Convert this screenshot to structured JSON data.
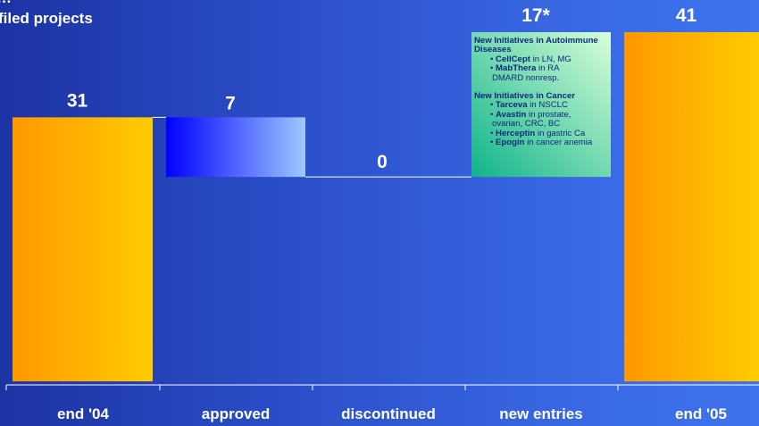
{
  "title": "filed projects",
  "title_fragment": "…",
  "chart_data": {
    "type": "bar",
    "subtype": "waterfall",
    "categories": [
      "end '04",
      "approved",
      "discontinued",
      "new entries",
      "end '05"
    ],
    "values": [
      31,
      7,
      0,
      17,
      41
    ],
    "value_labels": [
      "31",
      "7",
      "0",
      "17*",
      "41"
    ],
    "ylim": [
      0,
      44
    ],
    "grid": false,
    "colors": {
      "totals": "#ff9800",
      "totals_end": "#ffcc00",
      "approved_start": "#0000ff",
      "approved_end": "#9ec8ff",
      "new_entries_start": "#0fb38a",
      "new_entries_end": "#d9ffd9",
      "connector": "#ffffff",
      "background_left": "#1c33a3",
      "background_right": "#3f73ee"
    }
  },
  "annotation": {
    "groups": [
      {
        "heading": "New Initiatives in Autoimmune Diseases",
        "items": [
          {
            "bullet": "•",
            "drug": "CellCept",
            "text": " in LN, MG"
          },
          {
            "bullet": "•",
            "drug": "MabThera",
            "text": " in RA"
          },
          {
            "bullet": "",
            "drug": "",
            "text": "DMARD nonresp."
          }
        ]
      },
      {
        "heading": "New Initiatives in Cancer",
        "items": [
          {
            "bullet": "•",
            "drug": "Tarceva",
            "text": " in NSCLC"
          },
          {
            "bullet": "•",
            "drug": "Avastin",
            "text": " in prostate,"
          },
          {
            "bullet": "",
            "drug": "",
            "text": "ovarian, CRC, BC"
          },
          {
            "bullet": "•",
            "drug": "Herceptin",
            "text": " in gastric Ca"
          },
          {
            "bullet": "•",
            "drug": "Epogin",
            "text": " in cancer anemia"
          }
        ]
      }
    ]
  }
}
